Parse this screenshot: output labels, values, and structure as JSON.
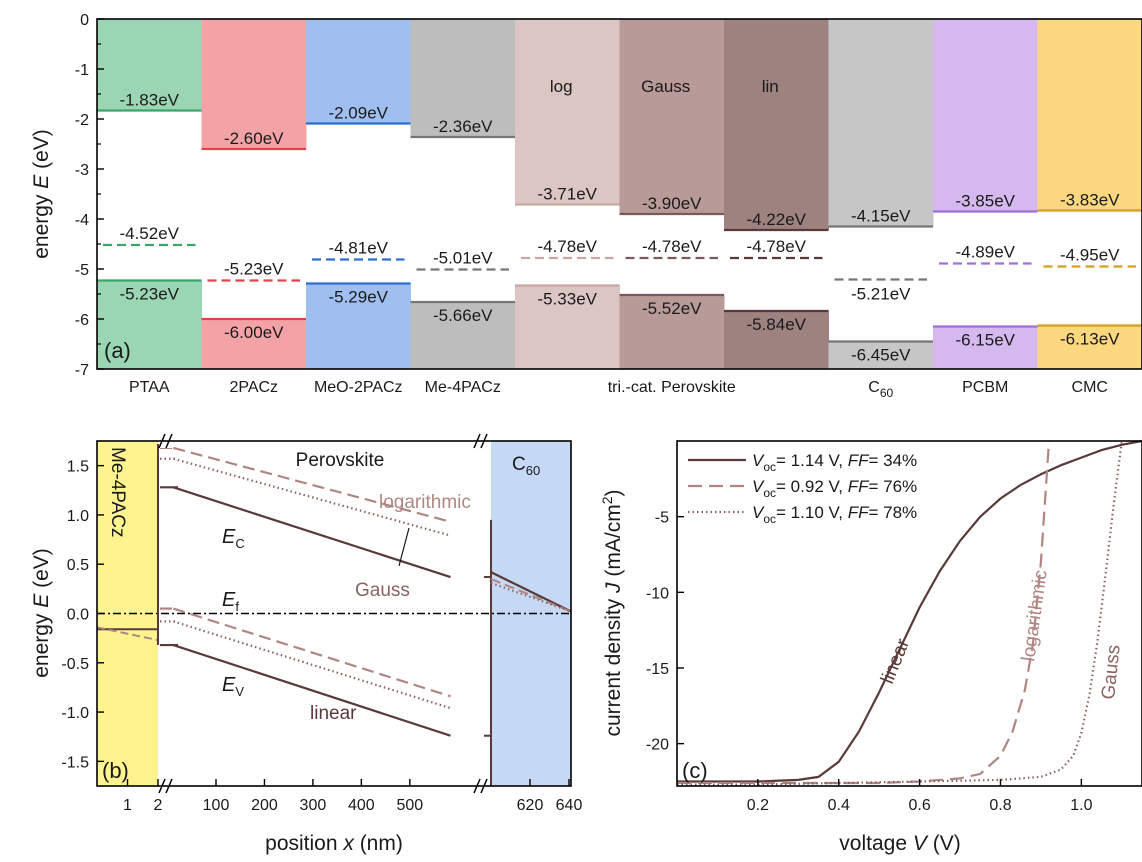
{
  "chart_data": [
    {
      "panel": "(a)",
      "type": "bar",
      "ylabel": "energy E (eV)",
      "ylabel_main": "energy ",
      "ylabel_var": "E",
      "ylabel_unit": " (eV)",
      "ylim": [
        -7,
        0
      ],
      "yticks": [
        "-7",
        "-6",
        "-5",
        "-4",
        "-3",
        "-2",
        "-1",
        "0"
      ],
      "columns": [
        {
          "color": "#9bd6b4",
          "line": "#3aa66a",
          "top": -1.83,
          "top_label": "-1.83eV",
          "mid": -4.52,
          "mid_label": "-4.52eV",
          "bottom": -5.23,
          "bottom_label": "-5.23eV"
        },
        {
          "color": "#f3a3a6",
          "line": "#e0444a",
          "top": -2.6,
          "top_label": "-2.60eV",
          "mid": -5.23,
          "mid_label": "-5.23eV",
          "bottom": -6.0,
          "bottom_label": "-6.00eV"
        },
        {
          "color": "#9fbff0",
          "line": "#2a6fd0",
          "top": -2.09,
          "top_label": "-2.09eV",
          "mid": -4.81,
          "mid_label": "-4.81eV",
          "bottom": -5.29,
          "bottom_label": "-5.29eV"
        },
        {
          "color": "#bdbdbd",
          "line": "#777777",
          "top": -2.36,
          "top_label": "-2.36eV",
          "mid": -5.01,
          "mid_label": "-5.01eV",
          "bottom": -5.66,
          "bottom_label": "-5.66eV"
        },
        {
          "color": "#dcc6c4",
          "line": "#c8a8a5",
          "top": -3.71,
          "top_label": "-3.71eV",
          "mid": -4.78,
          "mid_label": "-4.78eV",
          "bottom": -5.33,
          "bottom_label": "-5.33eV",
          "name": "log"
        },
        {
          "color": "#b89a98",
          "line": "#7a5a58",
          "top": -3.9,
          "top_label": "-3.90eV",
          "mid": -4.78,
          "mid_label": "-4.78eV",
          "bottom": -5.52,
          "bottom_label": "-5.52eV",
          "name": "Gauss"
        },
        {
          "color": "#9d8280",
          "line": "#5a3a38",
          "top": -4.22,
          "top_label": "-4.22eV",
          "mid": -4.78,
          "mid_label": "-4.78eV",
          "bottom": -5.84,
          "bottom_label": "-5.84eV",
          "name": "lin"
        },
        {
          "color": "#c6c6c6",
          "line": "#777777",
          "top": -4.15,
          "top_label": "-4.15eV",
          "mid": -5.21,
          "mid_label": "-5.21eV",
          "bottom": -6.45,
          "bottom_label": "-6.45eV"
        },
        {
          "color": "#d5b8ee",
          "line": "#a070d8",
          "top": -3.85,
          "top_label": "-3.85eV",
          "mid": -4.89,
          "mid_label": "-4.89eV",
          "bottom": -6.15,
          "bottom_label": "-6.15eV"
        },
        {
          "color": "#fbd77f",
          "line": "#d4a020",
          "top": -3.83,
          "top_label": "-3.83eV",
          "mid": -4.95,
          "mid_label": "-4.95eV",
          "bottom": -6.13,
          "bottom_label": "-6.13eV"
        }
      ],
      "categories": [
        "PTAA",
        "2PACz",
        "MeO-2PACz",
        "Me-4PACz",
        "tri.-cat. Perovskite",
        "C",
        "PCBM",
        "CMC"
      ],
      "c60_sub": "60"
    },
    {
      "panel": "(b)",
      "type": "line",
      "xlabel_main": "position ",
      "xlabel_var": "x",
      "xlabel_unit": " (nm)",
      "ylabel_main": "energy ",
      "ylabel_var": "E",
      "ylabel_unit": " (eV)",
      "ylim": [
        -1.75,
        1.75
      ],
      "yticks": [
        {
          "v": 1.5,
          "label": "1.5"
        },
        {
          "v": 1.0,
          "label": "1.0"
        },
        {
          "v": 0.5,
          "label": "0.5"
        },
        {
          "v": 0.0,
          "label": "0.0"
        },
        {
          "v": -0.5,
          "label": "-0.5"
        },
        {
          "v": -1.0,
          "label": "-1.0"
        },
        {
          "v": -1.5,
          "label": "-1.5"
        }
      ],
      "xticks": [
        {
          "seg": "htl",
          "v": 1,
          "label": "1"
        },
        {
          "seg": "htl",
          "v": 2,
          "label": "2"
        },
        {
          "seg": "pvk",
          "v": 100,
          "label": "100"
        },
        {
          "seg": "pvk",
          "v": 200,
          "label": "200"
        },
        {
          "seg": "pvk",
          "v": 300,
          "label": "300"
        },
        {
          "seg": "pvk",
          "v": 400,
          "label": "400"
        },
        {
          "seg": "pvk",
          "v": 500,
          "label": "500"
        },
        {
          "seg": "etl",
          "v": 620,
          "label": "620"
        },
        {
          "seg": "etl",
          "v": 640,
          "label": "640"
        }
      ],
      "htl_label": "Me-4PACz",
      "etl_label": "C",
      "etl_sub": "60",
      "mid_label": "Perovskite",
      "ann_logarithmic": "logarithmic",
      "ann_gauss": "Gauss",
      "ann_linear": "linear",
      "ann_ec": "E",
      "ann_ec_sub": "C",
      "ann_ef": "E",
      "ann_ef_sub": "f",
      "ann_ev": "E",
      "ann_ev_sub": "V",
      "series": [
        {
          "style": "linear",
          "ec_htl": 1.28,
          "ec_start": 1.28,
          "ec_end": 0.37,
          "ev_htl": -0.16,
          "ev_start": -0.32,
          "ev_end": -1.24,
          "etl_ec": 0.42,
          "etl_end": 0.02
        },
        {
          "style": "logarithmic",
          "ec_start": 1.68,
          "ec_end": 0.93,
          "ev_start": 0.05,
          "ev_end": -0.84
        },
        {
          "style": "gauss",
          "ec_start": 1.57,
          "ec_end": 0.79,
          "ev_start": -0.08,
          "ev_end": -0.96
        }
      ]
    },
    {
      "panel": "(c)",
      "type": "line",
      "xlabel_main": "voltage ",
      "xlabel_var": "V",
      "xlabel_unit": " (V)",
      "ylabel_main": "current density ",
      "ylabel_var": "J",
      "ylabel_unit": " (mA/cm",
      "ylabel_sup": "2",
      "ylabel_close": ")",
      "xlim": [
        0,
        1.15
      ],
      "ylim": [
        -22.8,
        0
      ],
      "xticks": [
        {
          "v": 0.2,
          "label": "0.2"
        },
        {
          "v": 0.4,
          "label": "0.4"
        },
        {
          "v": 0.6,
          "label": "0.6"
        },
        {
          "v": 0.8,
          "label": "0.8"
        },
        {
          "v": 1.0,
          "label": "1.0"
        }
      ],
      "yticks": [
        {
          "v": -5,
          "label": "-5"
        },
        {
          "v": -10,
          "label": "-10"
        },
        {
          "v": -15,
          "label": "-15"
        },
        {
          "v": -20,
          "label": "-20"
        }
      ],
      "legend": [
        {
          "voc": "= 1.14 V, ",
          "ff": "= 34%"
        },
        {
          "voc": "= 0.92 V, ",
          "ff": "= 76%"
        },
        {
          "voc": "= 1.10 V, ",
          "ff": "= 78%"
        }
      ],
      "legend_v": "V",
      "legend_oc": "oc",
      "legend_ff": "FF",
      "ann_linear": "linear",
      "ann_logarithmic": "logarithmic",
      "ann_gauss": "Gauss",
      "series": [
        {
          "style": "linear",
          "x": [
            0,
            0.1,
            0.2,
            0.3,
            0.35,
            0.4,
            0.45,
            0.5,
            0.55,
            0.6,
            0.65,
            0.7,
            0.75,
            0.8,
            0.85,
            0.9,
            0.95,
            1.0,
            1.05,
            1.1,
            1.15
          ],
          "y": [
            -22.5,
            -22.5,
            -22.5,
            -22.4,
            -22.2,
            -21.2,
            -19.2,
            -16.6,
            -13.8,
            -11.0,
            -8.6,
            -6.6,
            -5.0,
            -3.8,
            -2.9,
            -2.2,
            -1.6,
            -1.1,
            -0.6,
            -0.25,
            0
          ]
        },
        {
          "style": "logarithmic",
          "x": [
            0,
            0.2,
            0.4,
            0.5,
            0.6,
            0.7,
            0.75,
            0.8,
            0.83,
            0.86,
            0.88,
            0.9,
            0.91,
            0.92
          ],
          "y": [
            -22.6,
            -22.6,
            -22.6,
            -22.6,
            -22.5,
            -22.3,
            -22.0,
            -20.8,
            -19.2,
            -16.5,
            -13.5,
            -8.0,
            -4.0,
            0
          ]
        },
        {
          "style": "gauss",
          "x": [
            0,
            0.2,
            0.4,
            0.6,
            0.8,
            0.9,
            0.95,
            0.98,
            1.0,
            1.02,
            1.04,
            1.06,
            1.08,
            1.1
          ],
          "y": [
            -22.7,
            -22.7,
            -22.6,
            -22.5,
            -22.4,
            -22.2,
            -21.7,
            -20.8,
            -19.3,
            -16.8,
            -13.2,
            -8.8,
            -4.2,
            0
          ]
        }
      ]
    }
  ]
}
